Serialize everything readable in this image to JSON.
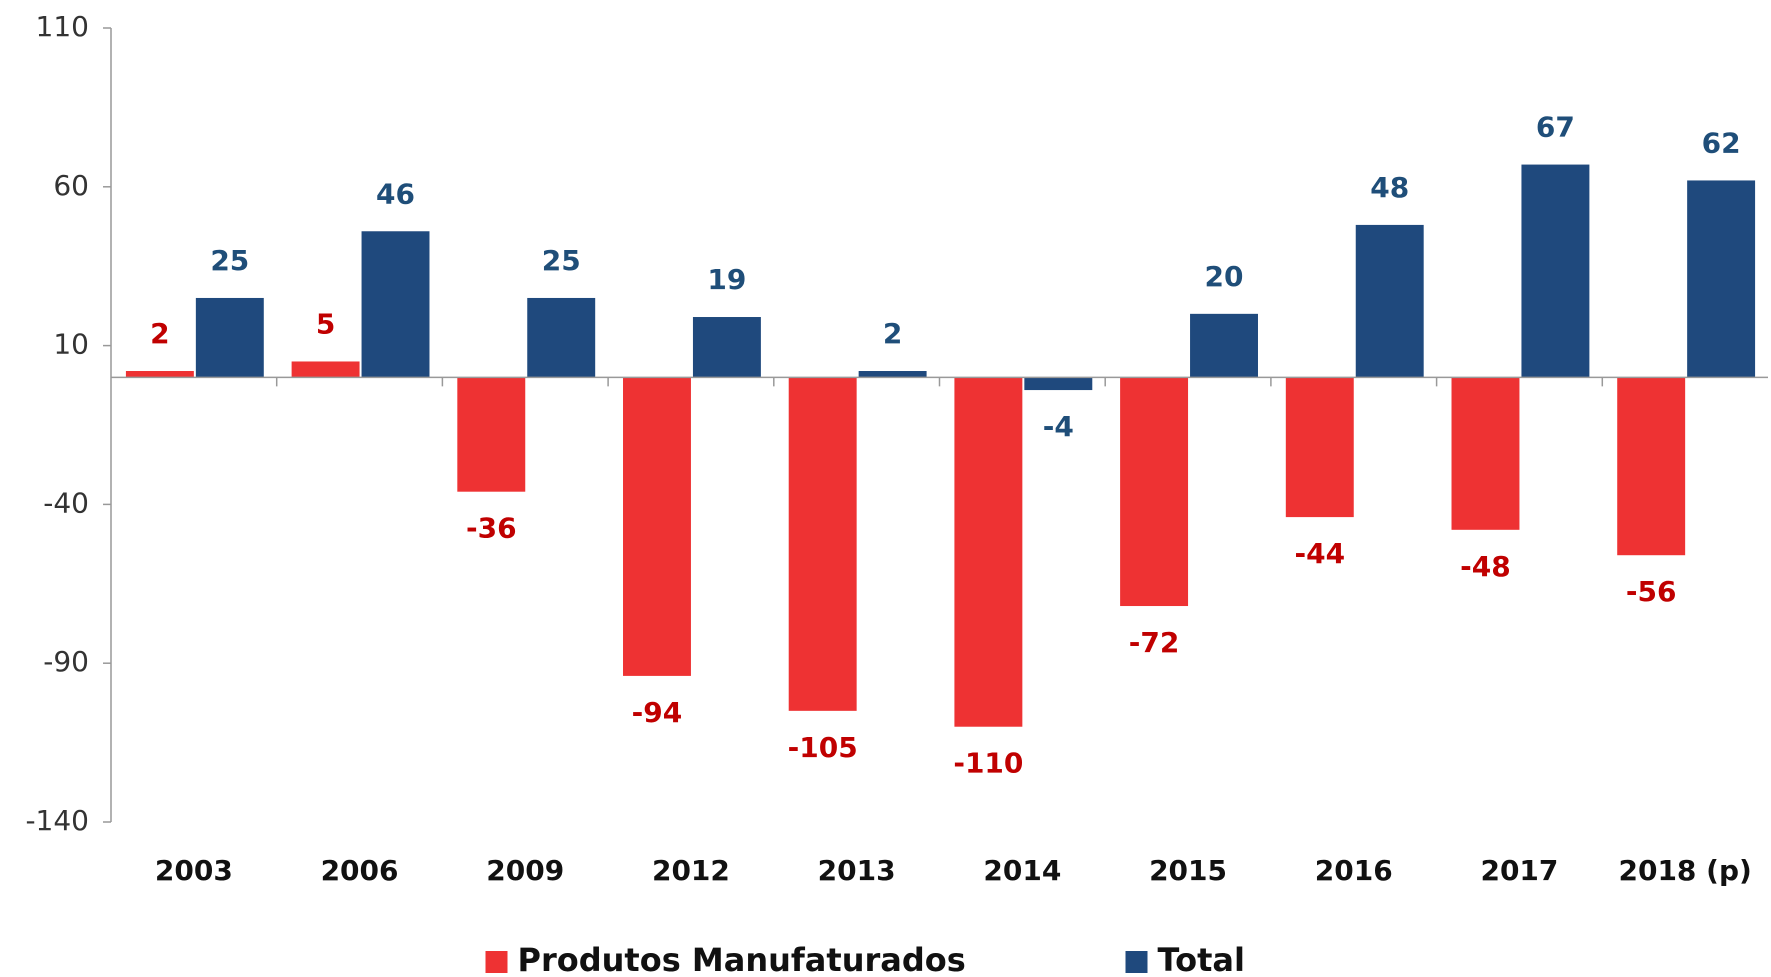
{
  "chart_data": {
    "type": "bar",
    "categories": [
      "2003",
      "2006",
      "2009",
      "2012",
      "2013",
      "2014",
      "2015",
      "2016",
      "2017",
      "2018 (p)"
    ],
    "series": [
      {
        "name": "Produtos Manufaturados",
        "color": "#ee3233",
        "label_color": "#c00000",
        "values": [
          2,
          5,
          -36,
          -94,
          -105,
          -110,
          -72,
          -44,
          -48,
          -56
        ]
      },
      {
        "name": "Total",
        "color": "#1f497d",
        "label_color": "#1f4e79",
        "values": [
          25,
          46,
          25,
          19,
          2,
          -4,
          20,
          48,
          67,
          62
        ]
      }
    ],
    "ylim": [
      -140,
      110
    ],
    "yticks": [
      -140,
      -90,
      -40,
      10,
      60,
      110
    ],
    "grid": false,
    "legend": "bottom"
  }
}
